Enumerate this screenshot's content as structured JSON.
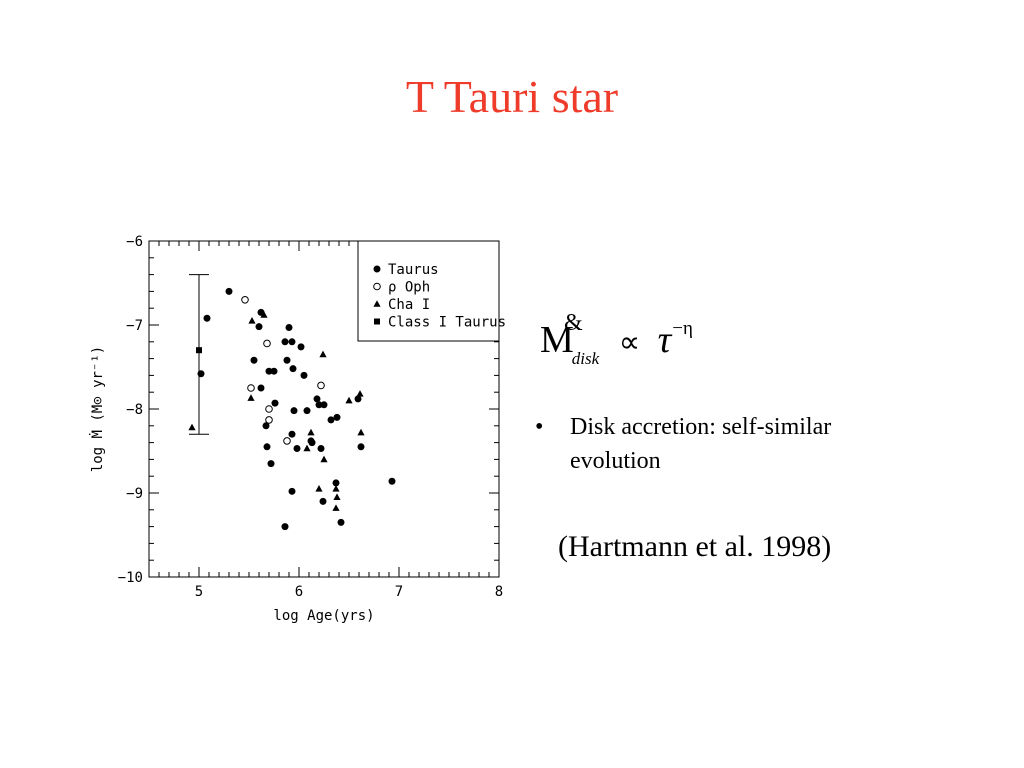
{
  "slide": {
    "title": "T Tauri star",
    "formula": {
      "symbol": "M",
      "dot": "&",
      "subscript": "disk",
      "relation": "∝",
      "variable": "τ",
      "exponent": "−η"
    },
    "bullet": {
      "marker": "•",
      "text": "Disk accretion: self-similar evolution"
    },
    "citation": "(Hartmann et al. 1998)"
  },
  "chart_data": {
    "type": "scatter",
    "xlabel": "log Age(yrs)",
    "ylabel": "log Ṁ (M⊙ yr⁻¹)",
    "xlim": [
      4.5,
      8
    ],
    "ylim": [
      -10,
      -6
    ],
    "xticks": [
      5,
      6,
      7,
      8
    ],
    "yticks": [
      -6,
      -7,
      -8,
      -9,
      -10
    ],
    "legend_position": "top-right",
    "grid": false,
    "error_bar": {
      "x": 5.0,
      "y_low": -8.3,
      "y_high": -6.4
    },
    "series": [
      {
        "name": "Taurus",
        "marker": "filled-circle",
        "points": [
          [
            5.02,
            -7.58
          ],
          [
            5.08,
            -6.92
          ],
          [
            5.3,
            -6.6
          ],
          [
            5.55,
            -7.42
          ],
          [
            5.62,
            -6.85
          ],
          [
            5.6,
            -7.02
          ],
          [
            5.62,
            -7.75
          ],
          [
            5.67,
            -8.2
          ],
          [
            5.7,
            -7.55
          ],
          [
            5.76,
            -7.93
          ],
          [
            5.72,
            -8.65
          ],
          [
            5.75,
            -7.55
          ],
          [
            5.68,
            -8.45
          ],
          [
            5.86,
            -7.2
          ],
          [
            5.9,
            -7.03
          ],
          [
            5.88,
            -7.42
          ],
          [
            5.93,
            -7.2
          ],
          [
            5.93,
            -8.98
          ],
          [
            5.86,
            -9.4
          ],
          [
            5.93,
            -8.3
          ],
          [
            5.98,
            -8.47
          ],
          [
            6.02,
            -7.26
          ],
          [
            6.05,
            -7.6
          ],
          [
            5.94,
            -7.52
          ],
          [
            5.95,
            -8.02
          ],
          [
            6.08,
            -8.02
          ],
          [
            6.12,
            -8.38
          ],
          [
            6.13,
            -8.4
          ],
          [
            6.18,
            -7.88
          ],
          [
            6.2,
            -7.95
          ],
          [
            6.25,
            -7.95
          ],
          [
            6.22,
            -8.47
          ],
          [
            6.24,
            -9.1
          ],
          [
            6.32,
            -8.13
          ],
          [
            6.38,
            -8.1
          ],
          [
            6.37,
            -8.88
          ],
          [
            6.42,
            -9.35
          ],
          [
            6.59,
            -7.88
          ],
          [
            6.62,
            -8.45
          ],
          [
            6.93,
            -8.86
          ]
        ]
      },
      {
        "name": "ρ Oph",
        "marker": "open-circle",
        "points": [
          [
            5.46,
            -6.7
          ],
          [
            5.68,
            -7.22
          ],
          [
            5.52,
            -7.75
          ],
          [
            5.7,
            -8.0
          ],
          [
            5.7,
            -8.13
          ],
          [
            5.88,
            -8.38
          ],
          [
            6.22,
            -7.72
          ]
        ]
      },
      {
        "name": "Cha I",
        "marker": "filled-triangle",
        "points": [
          [
            4.93,
            -8.22
          ],
          [
            5.52,
            -7.87
          ],
          [
            5.53,
            -6.95
          ],
          [
            5.65,
            -6.88
          ],
          [
            6.08,
            -8.47
          ],
          [
            6.12,
            -8.28
          ],
          [
            6.24,
            -7.35
          ],
          [
            6.25,
            -8.6
          ],
          [
            6.2,
            -8.95
          ],
          [
            6.37,
            -8.95
          ],
          [
            6.38,
            -9.05
          ],
          [
            6.37,
            -9.18
          ],
          [
            6.5,
            -7.9
          ],
          [
            6.61,
            -7.82
          ],
          [
            6.62,
            -8.28
          ]
        ]
      },
      {
        "name": "Class I Taurus",
        "marker": "filled-square",
        "points": [
          [
            5.0,
            -7.3
          ]
        ]
      }
    ]
  }
}
